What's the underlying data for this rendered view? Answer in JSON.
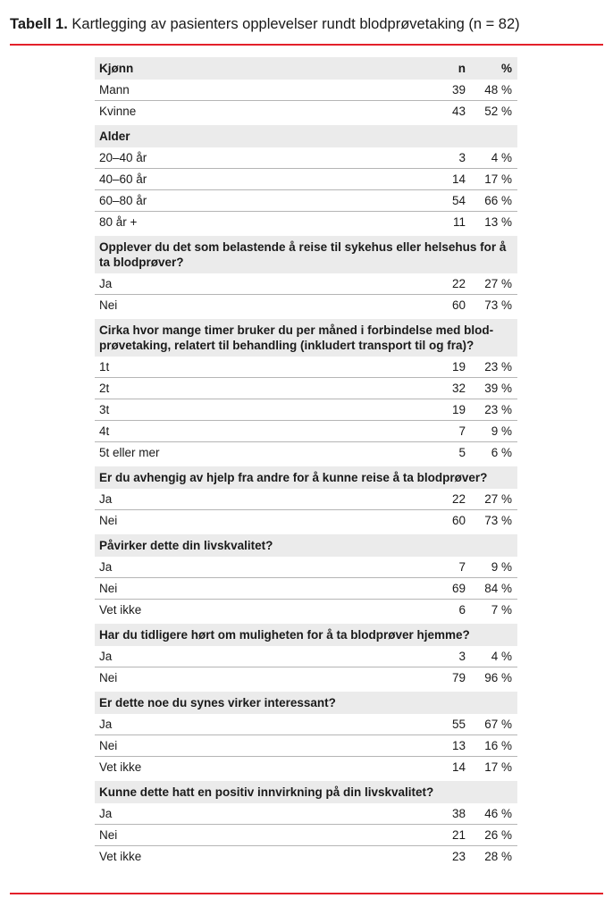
{
  "title": {
    "prefix": "Tabell 1.",
    "text": " Kartlegging av pasienters opplevelser rundt blodprøvetaking (n = 82)"
  },
  "accent_color": "#e3202a",
  "columns": {
    "n": "n",
    "pct": "%"
  },
  "groups": [
    {
      "header": "Kjønn",
      "show_cols": true,
      "rows": [
        [
          "Mann",
          "39",
          "48 %"
        ],
        [
          "Kvinne",
          "43",
          "52 %"
        ]
      ]
    },
    {
      "header": "Alder",
      "rows": [
        [
          "20–40 år",
          "3",
          "4 %"
        ],
        [
          "40–60 år",
          "14",
          "17 %"
        ],
        [
          "60–80 år",
          "54",
          "66 %"
        ],
        [
          "80 år +",
          "11",
          "13 %"
        ]
      ]
    },
    {
      "header": "Opplever du det som belastende å reise til sykehus eller helsehus for å ta blodprøver?",
      "rows": [
        [
          "Ja",
          "22",
          "27 %"
        ],
        [
          "Nei",
          "60",
          "73 %"
        ]
      ]
    },
    {
      "header": "Cirka hvor mange timer bruker du per måned i forbindelse med blod-prøvetaking, relatert til behandling (inkludert transport til og fra)?",
      "rows": [
        [
          "1t",
          "19",
          "23 %"
        ],
        [
          "2t",
          "32",
          "39 %"
        ],
        [
          "3t",
          "19",
          "23 %"
        ],
        [
          "4t",
          "7",
          "9 %"
        ],
        [
          "5t eller mer",
          "5",
          "6 %"
        ]
      ]
    },
    {
      "header": "Er du avhengig av hjelp fra andre for å kunne reise å ta blodprøver?",
      "rows": [
        [
          "Ja",
          "22",
          "27 %"
        ],
        [
          "Nei",
          "60",
          "73 %"
        ]
      ]
    },
    {
      "header": "Påvirker dette din livskvalitet?",
      "rows": [
        [
          "Ja",
          "7",
          "9 %"
        ],
        [
          "Nei",
          "69",
          "84 %"
        ],
        [
          "Vet ikke",
          "6",
          "7 %"
        ]
      ]
    },
    {
      "header": "Har du tidligere hørt om muligheten for å ta blodprøver hjemme?",
      "rows": [
        [
          "Ja",
          "3",
          "4 %"
        ],
        [
          "Nei",
          "79",
          "96 %"
        ]
      ]
    },
    {
      "header": "Er dette noe du synes virker interessant?",
      "rows": [
        [
          "Ja",
          "55",
          "67 %"
        ],
        [
          "Nei",
          "13",
          "16 %"
        ],
        [
          "Vet ikke",
          "14",
          "17 %"
        ]
      ]
    },
    {
      "header": "Kunne dette hatt en positiv innvirkning på din livskvalitet?",
      "rows": [
        [
          "Ja",
          "38",
          "46 %"
        ],
        [
          "Nei",
          "21",
          "26 %"
        ],
        [
          "Vet ikke",
          "23",
          "28 %"
        ]
      ]
    }
  ]
}
